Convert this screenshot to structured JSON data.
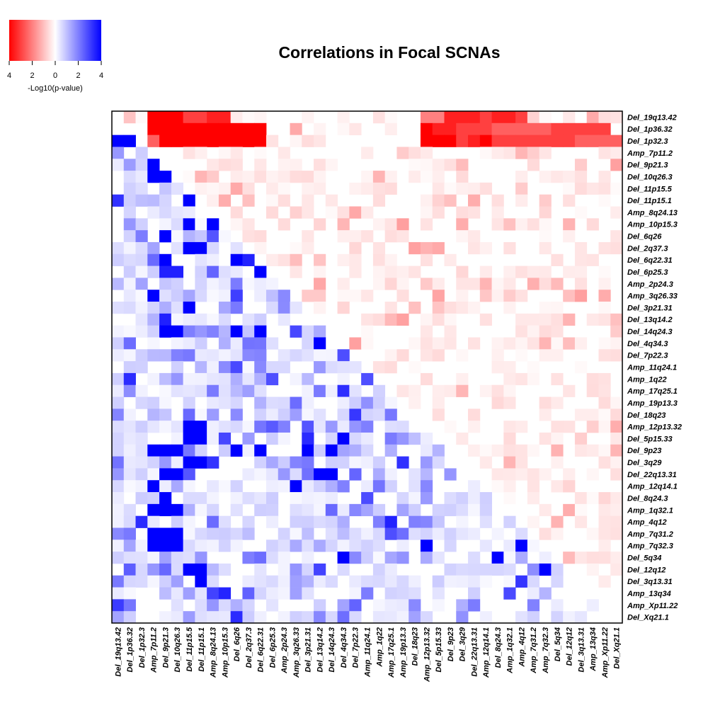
{
  "chart_data": {
    "type": "heatmap",
    "title": "Correlations in Focal SCNAs",
    "labels": [
      "Del_19q13.42",
      "Del_1p36.32",
      "Del_1p32.3",
      "Amp_7p11.2",
      "Del_9p21.3",
      "Del_10q26.3",
      "Del_11p15.5",
      "Del_11p15.1",
      "Amp_8q24.13",
      "Amp_10p15.3",
      "Del_6q26",
      "Del_2q37.3",
      "Del_6q22.31",
      "Del_6p25.3",
      "Amp_2p24.3",
      "Amp_3q26.33",
      "Del_3p21.31",
      "Del_13q14.2",
      "Del_14q24.3",
      "Del_4q34.3",
      "Del_7p22.3",
      "Amp_11q24.1",
      "Amp_1q22",
      "Amp_17q25.1",
      "Amp_19p13.3",
      "Del_18q23",
      "Amp_12p13.32",
      "Del_5p15.33",
      "Del_9p23",
      "Del_3q29",
      "Del_22q13.31",
      "Amp_12q14.1",
      "Del_8q24.3",
      "Amp_1q32.1",
      "Amp_4q12",
      "Amp_7q31.2",
      "Amp_7q32.3",
      "Del_5q34",
      "Del_12q12",
      "Del_3q13.31",
      "Amp_13q34",
      "Amp_Xp11.22",
      "Del_Xq21.1"
    ],
    "upper_triangle": "red = anti-correlated (mutually exclusive)",
    "lower_triangle": "blue = co-occurring",
    "value_label": "-Log10(p-value)",
    "colorbar": {
      "ticks": [
        "4",
        "2",
        "0",
        "2",
        "4"
      ],
      "label": "-Log10(p-value)",
      "range": [
        -4,
        4
      ],
      "colors": {
        "negative": "#ff0000",
        "zero": "#ffffff",
        "positive": "#0000ff"
      }
    },
    "strong_associations": {
      "upper_red": [
        [
          0,
          3,
          4
        ],
        [
          0,
          4,
          4
        ],
        [
          0,
          5,
          4
        ],
        [
          0,
          6,
          3
        ],
        [
          0,
          7,
          3
        ],
        [
          0,
          8,
          3.5
        ],
        [
          0,
          9,
          3.5
        ],
        [
          0,
          26,
          2
        ],
        [
          0,
          27,
          2
        ],
        [
          0,
          28,
          3.5
        ],
        [
          0,
          29,
          3.5
        ],
        [
          0,
          30,
          3.5
        ],
        [
          0,
          31,
          3
        ],
        [
          0,
          32,
          3.5
        ],
        [
          0,
          33,
          3.5
        ],
        [
          0,
          34,
          3
        ],
        [
          1,
          3,
          4
        ],
        [
          1,
          4,
          4
        ],
        [
          1,
          5,
          4
        ],
        [
          1,
          6,
          4
        ],
        [
          1,
          7,
          4
        ],
        [
          1,
          8,
          4
        ],
        [
          1,
          9,
          4
        ],
        [
          1,
          10,
          4
        ],
        [
          1,
          11,
          4
        ],
        [
          1,
          12,
          4
        ],
        [
          1,
          26,
          4
        ],
        [
          1,
          27,
          3.5
        ],
        [
          1,
          28,
          3.5
        ],
        [
          1,
          29,
          3
        ],
        [
          1,
          30,
          3
        ],
        [
          1,
          31,
          3
        ],
        [
          1,
          32,
          2.5
        ],
        [
          1,
          33,
          2.5
        ],
        [
          1,
          34,
          2.5
        ],
        [
          1,
          35,
          2.5
        ],
        [
          1,
          36,
          2.5
        ],
        [
          1,
          37,
          3
        ],
        [
          1,
          38,
          3
        ],
        [
          1,
          39,
          3
        ],
        [
          1,
          40,
          3
        ],
        [
          1,
          41,
          3
        ],
        [
          2,
          3,
          2.5
        ],
        [
          2,
          4,
          4
        ],
        [
          2,
          5,
          4
        ],
        [
          2,
          6,
          4
        ],
        [
          2,
          7,
          4
        ],
        [
          2,
          8,
          4
        ],
        [
          2,
          9,
          4
        ],
        [
          2,
          10,
          4
        ],
        [
          2,
          11,
          4
        ],
        [
          2,
          12,
          4
        ],
        [
          2,
          26,
          4
        ],
        [
          2,
          27,
          4
        ],
        [
          2,
          28,
          4
        ],
        [
          2,
          29,
          3
        ],
        [
          2,
          30,
          3.5
        ],
        [
          2,
          31,
          4
        ],
        [
          2,
          32,
          3
        ],
        [
          2,
          33,
          3
        ],
        [
          2,
          34,
          3
        ],
        [
          2,
          35,
          3
        ],
        [
          2,
          36,
          3
        ],
        [
          2,
          37,
          3
        ],
        [
          2,
          38,
          3
        ],
        [
          2,
          39,
          2.5
        ],
        [
          2,
          40,
          2.5
        ],
        [
          2,
          41,
          2.5
        ],
        [
          2,
          42,
          2.5
        ]
      ],
      "lower_blue": [
        [
          2,
          0,
          4
        ],
        [
          2,
          1,
          4
        ],
        [
          4,
          3,
          4
        ],
        [
          5,
          3,
          4
        ],
        [
          5,
          4,
          4
        ],
        [
          7,
          6,
          4
        ],
        [
          9,
          6,
          4
        ],
        [
          9,
          8,
          4
        ],
        [
          10,
          4,
          4
        ],
        [
          11,
          6,
          4
        ],
        [
          11,
          7,
          4
        ],
        [
          12,
          4,
          4
        ],
        [
          12,
          10,
          4
        ],
        [
          13,
          4,
          3.5
        ],
        [
          13,
          5,
          3.5
        ],
        [
          13,
          12,
          4
        ],
        [
          15,
          3,
          4
        ],
        [
          16,
          6,
          4
        ],
        [
          17,
          4,
          3.5
        ],
        [
          18,
          4,
          4
        ],
        [
          18,
          5,
          4
        ],
        [
          18,
          10,
          4
        ],
        [
          18,
          12,
          4
        ],
        [
          19,
          17,
          4
        ],
        [
          20,
          5,
          2
        ],
        [
          26,
          6,
          4
        ],
        [
          26,
          7,
          4
        ],
        [
          27,
          6,
          4
        ],
        [
          27,
          7,
          4
        ],
        [
          27,
          19,
          4
        ],
        [
          28,
          3,
          4
        ],
        [
          28,
          4,
          4
        ],
        [
          28,
          5,
          4
        ],
        [
          28,
          10,
          4
        ],
        [
          28,
          12,
          4
        ],
        [
          28,
          16,
          4
        ],
        [
          28,
          18,
          4
        ],
        [
          29,
          6,
          4
        ],
        [
          29,
          7,
          4
        ],
        [
          30,
          4,
          4
        ],
        [
          30,
          5,
          4
        ],
        [
          30,
          17,
          4
        ],
        [
          30,
          18,
          4
        ],
        [
          31,
          3,
          4
        ],
        [
          31,
          15,
          4
        ],
        [
          32,
          4,
          4
        ],
        [
          33,
          3,
          4
        ],
        [
          33,
          4,
          4
        ],
        [
          33,
          5,
          4
        ],
        [
          35,
          3,
          4
        ],
        [
          35,
          4,
          4
        ],
        [
          35,
          5,
          4
        ],
        [
          36,
          3,
          4
        ],
        [
          36,
          4,
          4
        ],
        [
          36,
          5,
          4
        ],
        [
          36,
          26,
          4
        ],
        [
          36,
          34,
          4
        ],
        [
          37,
          19,
          4
        ],
        [
          37,
          32,
          4
        ],
        [
          38,
          6,
          4
        ],
        [
          38,
          7,
          4
        ],
        [
          38,
          36,
          4
        ],
        [
          39,
          7,
          4
        ]
      ]
    }
  }
}
